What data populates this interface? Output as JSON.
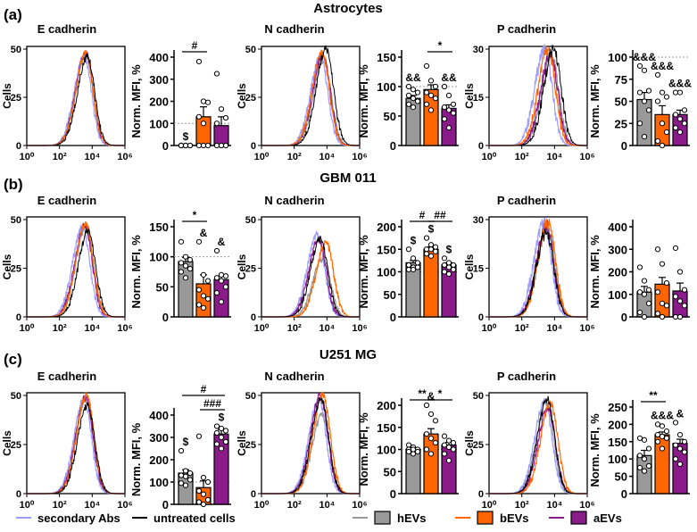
{
  "colors": {
    "secondary": "#9d9dff",
    "untreated": "#000000",
    "hEVs": "#999999",
    "bEVs": "#ff6600",
    "aEVs": "#8b1a8b"
  },
  "legend": {
    "secondary": "secondary Abs",
    "untreated": "untreated cells",
    "hEVs": "hEVs",
    "bEVs": "bEVs",
    "aEVs": "aEVs"
  },
  "hist_x_ticks": [
    "10⁰",
    "10²",
    "10⁴",
    "10⁶"
  ],
  "hist_ylabel": "Cells",
  "bar_ylabel": "Norm. MFI, %",
  "chart_data": [
    {
      "row": "(a)",
      "title": "Astrocytes",
      "panels": [
        {
          "subtitle": "E cadherin",
          "type": "bar",
          "hist": {
            "ymax": 50,
            "y_ticks": [
              0,
              25,
              50
            ],
            "peaks": {
              "secondary": [
                3.5,
                46
              ],
              "untreated": [
                3.7,
                46
              ],
              "hEVs": [
                3.6,
                47
              ],
              "bEVs": [
                3.6,
                48
              ],
              "aEVs": [
                3.6,
                48
              ]
            }
          },
          "ymax": 400,
          "y_ticks": [
            0,
            100,
            200,
            300,
            400
          ],
          "means": [
            0,
            130,
            90
          ],
          "errors": [
            0,
            45,
            40
          ],
          "points": [
            [
              0,
              0,
              0,
              0,
              0,
              0,
              0,
              0
            ],
            [
              380,
              200,
              195,
              130,
              100,
              0,
              0,
              0
            ],
            [
              325,
              165,
              125,
              100,
              0,
              0,
              0,
              0
            ]
          ],
          "marks": [
            {
              "text": "$",
              "bar": 0
            }
          ],
          "brackets": [
            {
              "text": "#",
              "from": 0,
              "to": 1,
              "level": 1
            }
          ]
        },
        {
          "subtitle": "N cadherin",
          "type": "bar",
          "hist": {
            "ymax": 50,
            "y_ticks": [
              0,
              25,
              50
            ],
            "peaks": {
              "secondary": [
                3.6,
                46
              ],
              "untreated": [
                3.95,
                50
              ],
              "hEVs": [
                3.8,
                45
              ],
              "bEVs": [
                3.7,
                48
              ],
              "aEVs": [
                3.75,
                47
              ]
            }
          },
          "ymax": 150,
          "y_ticks": [
            0,
            50,
            100,
            150
          ],
          "means": [
            80,
            95,
            63
          ],
          "errors": [
            5,
            8,
            6
          ],
          "points": [
            [
              100,
              95,
              90,
              85,
              80,
              75,
              70,
              65
            ],
            [
              135,
              110,
              100,
              90,
              85,
              80,
              70,
              60
            ],
            [
              100,
              85,
              70,
              65,
              60,
              55,
              45,
              30
            ]
          ],
          "marks": [
            {
              "text": "&&",
              "bar": 0
            },
            {
              "text": "&&",
              "bar": 2
            }
          ],
          "brackets": [
            {
              "text": "*",
              "from": 1,
              "to": 2,
              "level": 1
            }
          ]
        },
        {
          "subtitle": "P cadherin",
          "type": "bar",
          "hist": {
            "ymax": 30,
            "y_ticks": [
              0,
              15,
              30
            ],
            "peaks": {
              "secondary": [
                3.4,
                30
              ],
              "untreated": [
                3.95,
                30
              ],
              "hEVs": [
                3.8,
                28
              ],
              "bEVs": [
                3.6,
                30
              ],
              "aEVs": [
                3.75,
                28
              ]
            }
          },
          "ymax": 100,
          "y_ticks": [
            0,
            25,
            50,
            75,
            100
          ],
          "means": [
            52,
            35,
            35
          ],
          "errors": [
            8,
            10,
            5
          ],
          "points": [
            [
              90,
              85,
              62,
              60,
              50,
              40,
              25,
              10
            ],
            [
              80,
              60,
              55,
              50,
              25,
              15,
              5,
              0
            ],
            [
              60,
              60,
              40,
              35,
              30,
              25,
              20,
              15
            ]
          ],
          "marks": [
            {
              "text": "&&&",
              "bar": 0
            },
            {
              "text": "&&&",
              "bar": 1
            },
            {
              "text": "&&&",
              "bar": 2
            }
          ],
          "brackets": []
        }
      ]
    },
    {
      "row": "(b)",
      "title": "GBM 011",
      "panels": [
        {
          "subtitle": "E cadherin",
          "type": "bar",
          "hist": {
            "ymax": 50,
            "y_ticks": [
              0,
              25,
              50
            ],
            "peaks": {
              "secondary": [
                3.4,
                46
              ],
              "untreated": [
                3.75,
                44
              ],
              "hEVs": [
                3.6,
                46
              ],
              "bEVs": [
                3.6,
                48
              ],
              "aEVs": [
                3.55,
                47
              ]
            }
          },
          "ymax": 150,
          "y_ticks": [
            0,
            50,
            100,
            150
          ],
          "means": [
            92,
            55,
            62
          ],
          "errors": [
            7,
            15,
            6
          ],
          "points": [
            [
              125,
              100,
              95,
              90,
              85,
              80,
              75,
              65
            ],
            [
              125,
              70,
              60,
              45,
              35,
              30,
              20,
              15
            ],
            [
              110,
              70,
              68,
              65,
              60,
              50,
              40,
              25
            ]
          ],
          "marks": [
            {
              "text": "&",
              "bar": 1
            },
            {
              "text": "&",
              "bar": 2
            }
          ],
          "brackets": [
            {
              "text": "*",
              "from": 0,
              "to": 1,
              "level": 1
            }
          ]
        },
        {
          "subtitle": "N cadherin",
          "type": "bar",
          "hist": {
            "ymax": 50,
            "y_ticks": [
              0,
              25,
              50
            ],
            "peaks": {
              "secondary": [
                3.4,
                42
              ],
              "untreated": [
                3.6,
                40
              ],
              "hEVs": [
                3.75,
                30
              ],
              "bEVs": [
                3.95,
                38
              ],
              "aEVs": [
                3.5,
                40
              ]
            }
          },
          "ymax": 200,
          "y_ticks": [
            0,
            50,
            100,
            150,
            200
          ],
          "means": [
            120,
            150,
            115
          ],
          "errors": [
            5,
            5,
            5
          ],
          "points": [
            [
              150,
              130,
              120,
              115,
              110,
              110,
              105,
              105
            ],
            [
              175,
              160,
              155,
              150,
              150,
              145,
              140,
              135
            ],
            [
              130,
              120,
              115,
              115,
              110,
              105,
              100,
              95
            ]
          ],
          "marks": [
            {
              "text": "$",
              "bar": 0
            },
            {
              "text": "$",
              "bar": 1
            },
            {
              "text": "$",
              "bar": 2
            }
          ],
          "brackets": [
            {
              "text": "#",
              "from": 0,
              "to": 1,
              "level": 1
            },
            {
              "text": "##",
              "from": 1,
              "to": 2,
              "level": 1
            }
          ]
        },
        {
          "subtitle": "P cadherin",
          "type": "bar",
          "hist": {
            "ymax": 30,
            "y_ticks": [
              0,
              15,
              30
            ],
            "peaks": {
              "secondary": [
                3.35,
                29
              ],
              "untreated": [
                3.5,
                26
              ],
              "hEVs": [
                3.55,
                27
              ],
              "bEVs": [
                3.6,
                29
              ],
              "aEVs": [
                3.5,
                28
              ]
            }
          },
          "ymax": 400,
          "y_ticks": [
            0,
            100,
            200,
            300,
            400
          ],
          "means": [
            110,
            145,
            115
          ],
          "errors": [
            25,
            30,
            35
          ],
          "points": [
            [
              220,
              160,
              120,
              110,
              100,
              60,
              20,
              0
            ],
            [
              300,
              235,
              150,
              110,
              60,
              50,
              15,
              0
            ],
            [
              305,
              200,
              120,
              90,
              70,
              50,
              0,
              0
            ]
          ],
          "marks": [],
          "brackets": []
        }
      ]
    },
    {
      "row": "(c)",
      "title": "U251 MG",
      "panels": [
        {
          "subtitle": "E cadherin",
          "type": "bar",
          "hist": {
            "ymax": 50,
            "y_ticks": [
              0,
              25,
              50
            ],
            "peaks": {
              "secondary": [
                3.5,
                48
              ],
              "untreated": [
                3.7,
                45
              ],
              "hEVs": [
                3.6,
                48
              ],
              "bEVs": [
                3.65,
                50
              ],
              "aEVs": [
                3.6,
                49
              ]
            }
          },
          "ymax": 400,
          "y_ticks": [
            0,
            100,
            200,
            300,
            400
          ],
          "means": [
            140,
            75,
            315
          ],
          "errors": [
            15,
            30,
            20
          ],
          "points": [
            [
              240,
              150,
              140,
              130,
              125,
              110,
              95,
              85
            ],
            [
              305,
              120,
              100,
              60,
              45,
              20,
              10,
              0
            ],
            [
              350,
              340,
              330,
              320,
              300,
              280,
              270,
              250
            ]
          ],
          "marks": [
            {
              "text": "$",
              "bar": 0
            },
            {
              "text": "$",
              "bar": 2
            }
          ],
          "brackets": [
            {
              "text": "###",
              "from": 1,
              "to": 2,
              "level": 1
            },
            {
              "text": "#",
              "from": 0,
              "to": 2,
              "level": 2
            }
          ]
        },
        {
          "subtitle": "N cadherin",
          "type": "bar",
          "hist": {
            "ymax": 50,
            "y_ticks": [
              0,
              25,
              50
            ],
            "peaks": {
              "secondary": [
                3.5,
                48
              ],
              "untreated": [
                3.65,
                48
              ],
              "hEVs": [
                3.7,
                40
              ],
              "bEVs": [
                3.75,
                50
              ],
              "aEVs": [
                3.6,
                50
              ]
            }
          },
          "ymax": 200,
          "y_ticks": [
            0,
            50,
            100,
            150,
            200
          ],
          "means": [
            100,
            135,
            110
          ],
          "errors": [
            3,
            12,
            6
          ],
          "points": [
            [
              110,
              105,
              100,
              100,
              100,
              95,
              95,
              90
            ],
            [
              200,
              180,
              165,
              135,
              125,
              115,
              100,
              90
            ],
            [
              130,
              120,
              115,
              110,
              105,
              100,
              90,
              75
            ]
          ],
          "marks": [
            {
              "text": "&",
              "bar": 1
            }
          ],
          "brackets": [
            {
              "text": "**",
              "from": 0,
              "to": 1,
              "level": 1
            },
            {
              "text": "*",
              "from": 1,
              "to": 2,
              "level": 1
            }
          ]
        },
        {
          "subtitle": "P cadherin",
          "type": "bar",
          "hist": {
            "ymax": 50,
            "y_ticks": [
              0,
              25,
              50
            ],
            "peaks": {
              "secondary": [
                3.4,
                47
              ],
              "untreated": [
                3.55,
                48
              ],
              "hEVs": [
                3.5,
                46
              ],
              "bEVs": [
                3.75,
                46
              ],
              "aEVs": [
                3.6,
                44
              ]
            }
          },
          "ymax": 250,
          "y_ticks": [
            0,
            50,
            100,
            150,
            200,
            250
          ],
          "means": [
            110,
            170,
            145
          ],
          "errors": [
            15,
            8,
            12
          ],
          "points": [
            [
              160,
              155,
              130,
              110,
              100,
              80,
              75,
              65
            ],
            [
              200,
              195,
              180,
              170,
              165,
              160,
              150,
              130
            ],
            [
              205,
              170,
              150,
              140,
              130,
              120,
              100,
              85
            ]
          ],
          "marks": [
            {
              "text": "&&&",
              "bar": 1
            },
            {
              "text": "&",
              "bar": 2
            }
          ],
          "brackets": [
            {
              "text": "**",
              "from": 0,
              "to": 1,
              "level": 1
            }
          ]
        }
      ]
    }
  ]
}
